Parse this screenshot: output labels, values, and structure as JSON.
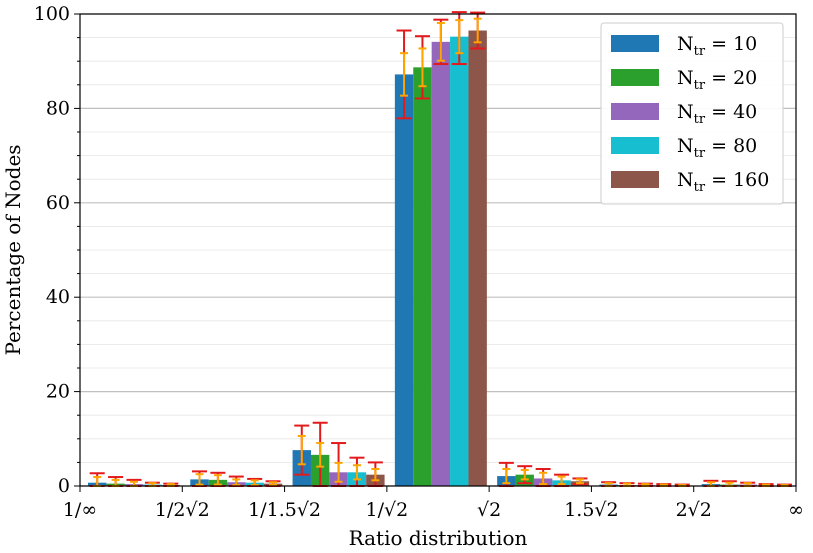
{
  "chart_data": {
    "type": "bar",
    "title": "",
    "xlabel": "Ratio distribution",
    "ylabel": "Percentage of Nodes",
    "ylim": [
      0,
      100
    ],
    "y_ticks": [
      0,
      20,
      40,
      60,
      80,
      100
    ],
    "x_tick_labels": [
      "1/∞",
      "1/2√2",
      "1/1.5√2",
      "1/√2",
      "√2",
      "1.5√2",
      "2√2",
      "∞"
    ],
    "grid": "horizontal",
    "legend_position": "top-right",
    "series": [
      {
        "name": "N_tr = 10",
        "legend_main": "N",
        "legend_sub": "tr",
        "legend_value": "= 10",
        "color": "#1f77b4",
        "values": [
          0.7,
          1.4,
          7.6,
          87.2,
          2.1,
          0.3,
          0.4
        ],
        "error_outer": [
          2.0,
          1.7,
          5.2,
          9.3,
          2.8,
          0.5,
          0.7
        ],
        "error_inner": [
          1.2,
          1.1,
          3.0,
          4.5,
          1.5,
          0.3,
          0.4
        ]
      },
      {
        "name": "N_tr = 20",
        "legend_main": "N",
        "legend_sub": "tr",
        "legend_value": "= 20",
        "color": "#2ca02c",
        "values": [
          0.5,
          1.3,
          6.6,
          88.7,
          2.4,
          0.2,
          0.3
        ],
        "error_outer": [
          1.4,
          1.5,
          6.8,
          6.6,
          1.8,
          0.4,
          0.7
        ],
        "error_inner": [
          0.8,
          1.0,
          2.5,
          4.0,
          1.0,
          0.3,
          0.4
        ]
      },
      {
        "name": "N_tr = 40",
        "legend_main": "N",
        "legend_sub": "tr",
        "legend_value": "= 40",
        "color": "#9467bd",
        "values": [
          0.4,
          0.8,
          2.9,
          94.1,
          1.6,
          0.2,
          0.3
        ],
        "error_outer": [
          0.9,
          1.2,
          6.2,
          4.7,
          2.0,
          0.3,
          0.4
        ],
        "error_inner": [
          0.5,
          0.6,
          2.0,
          4.0,
          1.2,
          0.2,
          0.3
        ]
      },
      {
        "name": "N_tr = 80",
        "legend_main": "N",
        "legend_sub": "tr",
        "legend_value": "= 80",
        "color": "#17becf",
        "values": [
          0.3,
          0.7,
          2.9,
          95.2,
          1.2,
          0.1,
          0.1
        ],
        "error_outer": [
          0.4,
          0.8,
          3.1,
          5.8,
          1.2,
          0.3,
          0.3
        ],
        "error_inner": [
          0.3,
          0.5,
          1.5,
          3.5,
          0.8,
          0.2,
          0.2
        ]
      },
      {
        "name": "N_tr = 160",
        "legend_main": "N",
        "legend_sub": "tr",
        "legend_value": "= 160",
        "color": "#8c564b",
        "values": [
          0.2,
          0.5,
          2.4,
          96.5,
          1.0,
          0.1,
          0.1
        ],
        "error_outer": [
          0.3,
          0.5,
          2.6,
          3.8,
          0.6,
          0.2,
          0.2
        ],
        "error_inner": [
          0.2,
          0.3,
          1.2,
          2.5,
          0.4,
          0.1,
          0.1
        ]
      }
    ],
    "error_colors": {
      "outer": "#e31a1c",
      "inner": "#ffa500"
    }
  }
}
